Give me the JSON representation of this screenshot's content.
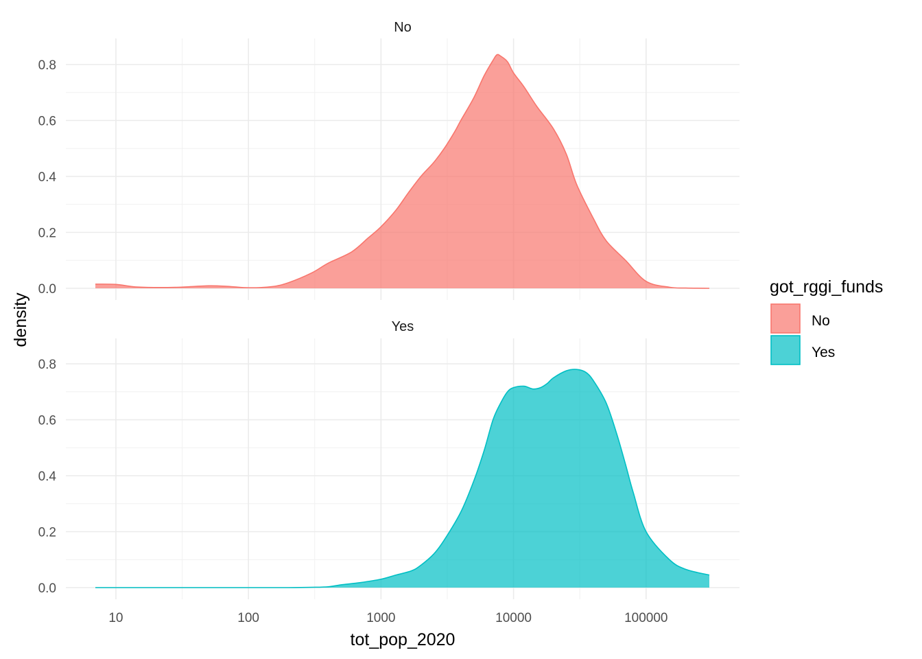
{
  "chart_data": {
    "type": "area",
    "x_scale": "log10",
    "xlabel": "tot_pop_2020",
    "ylabel": "density",
    "xlim": [
      7,
      300000
    ],
    "ylim": [
      0,
      0.8
    ],
    "x_ticks": [
      10,
      100,
      1000,
      10000,
      100000
    ],
    "x_tick_labels": [
      "10",
      "100",
      "1000",
      "10000",
      "100000"
    ],
    "y_ticks": [
      0.0,
      0.2,
      0.4,
      0.6,
      0.8
    ],
    "y_tick_labels": [
      "0.0",
      "0.2",
      "0.4",
      "0.6",
      "0.8"
    ],
    "grid": true,
    "legend": {
      "title": "got_rggi_funds",
      "position": "right"
    },
    "panels": [
      {
        "strip": "No",
        "name": "No",
        "color": "#F8766D",
        "x": [
          7,
          10,
          14,
          20,
          30,
          50,
          70,
          100,
          150,
          200,
          300,
          400,
          600,
          800,
          1000,
          1300,
          1600,
          2000,
          2500,
          3000,
          3600,
          4000,
          5000,
          6000,
          7000,
          7500,
          8000,
          9000,
          10000,
          12000,
          15000,
          20000,
          25000,
          30000,
          40000,
          50000,
          70000,
          100000,
          150000,
          200000,
          300000
        ],
        "y": [
          0.015,
          0.014,
          0.005,
          0.003,
          0.004,
          0.009,
          0.007,
          0.002,
          0.006,
          0.02,
          0.055,
          0.09,
          0.13,
          0.18,
          0.22,
          0.28,
          0.34,
          0.4,
          0.45,
          0.5,
          0.56,
          0.6,
          0.68,
          0.76,
          0.815,
          0.835,
          0.83,
          0.81,
          0.77,
          0.72,
          0.65,
          0.57,
          0.48,
          0.37,
          0.25,
          0.17,
          0.1,
          0.025,
          0.004,
          0.001,
          0.0
        ]
      },
      {
        "strip": "Yes",
        "name": "Yes",
        "color": "#00BFC4",
        "x": [
          7,
          50,
          100,
          200,
          300,
          400,
          500,
          700,
          1000,
          1300,
          1700,
          2000,
          2500,
          3000,
          4000,
          5000,
          6000,
          7000,
          8000,
          9000,
          10000,
          12000,
          14000,
          16000,
          18000,
          20000,
          25000,
          30000,
          35000,
          40000,
          50000,
          60000,
          70000,
          80000,
          100000,
          150000,
          200000,
          300000
        ],
        "y": [
          0.0,
          0.0,
          0.0,
          0.0,
          0.001,
          0.003,
          0.01,
          0.018,
          0.03,
          0.045,
          0.06,
          0.08,
          0.12,
          0.17,
          0.27,
          0.38,
          0.49,
          0.6,
          0.66,
          0.7,
          0.715,
          0.72,
          0.71,
          0.715,
          0.73,
          0.75,
          0.775,
          0.78,
          0.77,
          0.74,
          0.66,
          0.55,
          0.44,
          0.34,
          0.2,
          0.1,
          0.065,
          0.045
        ]
      }
    ]
  }
}
